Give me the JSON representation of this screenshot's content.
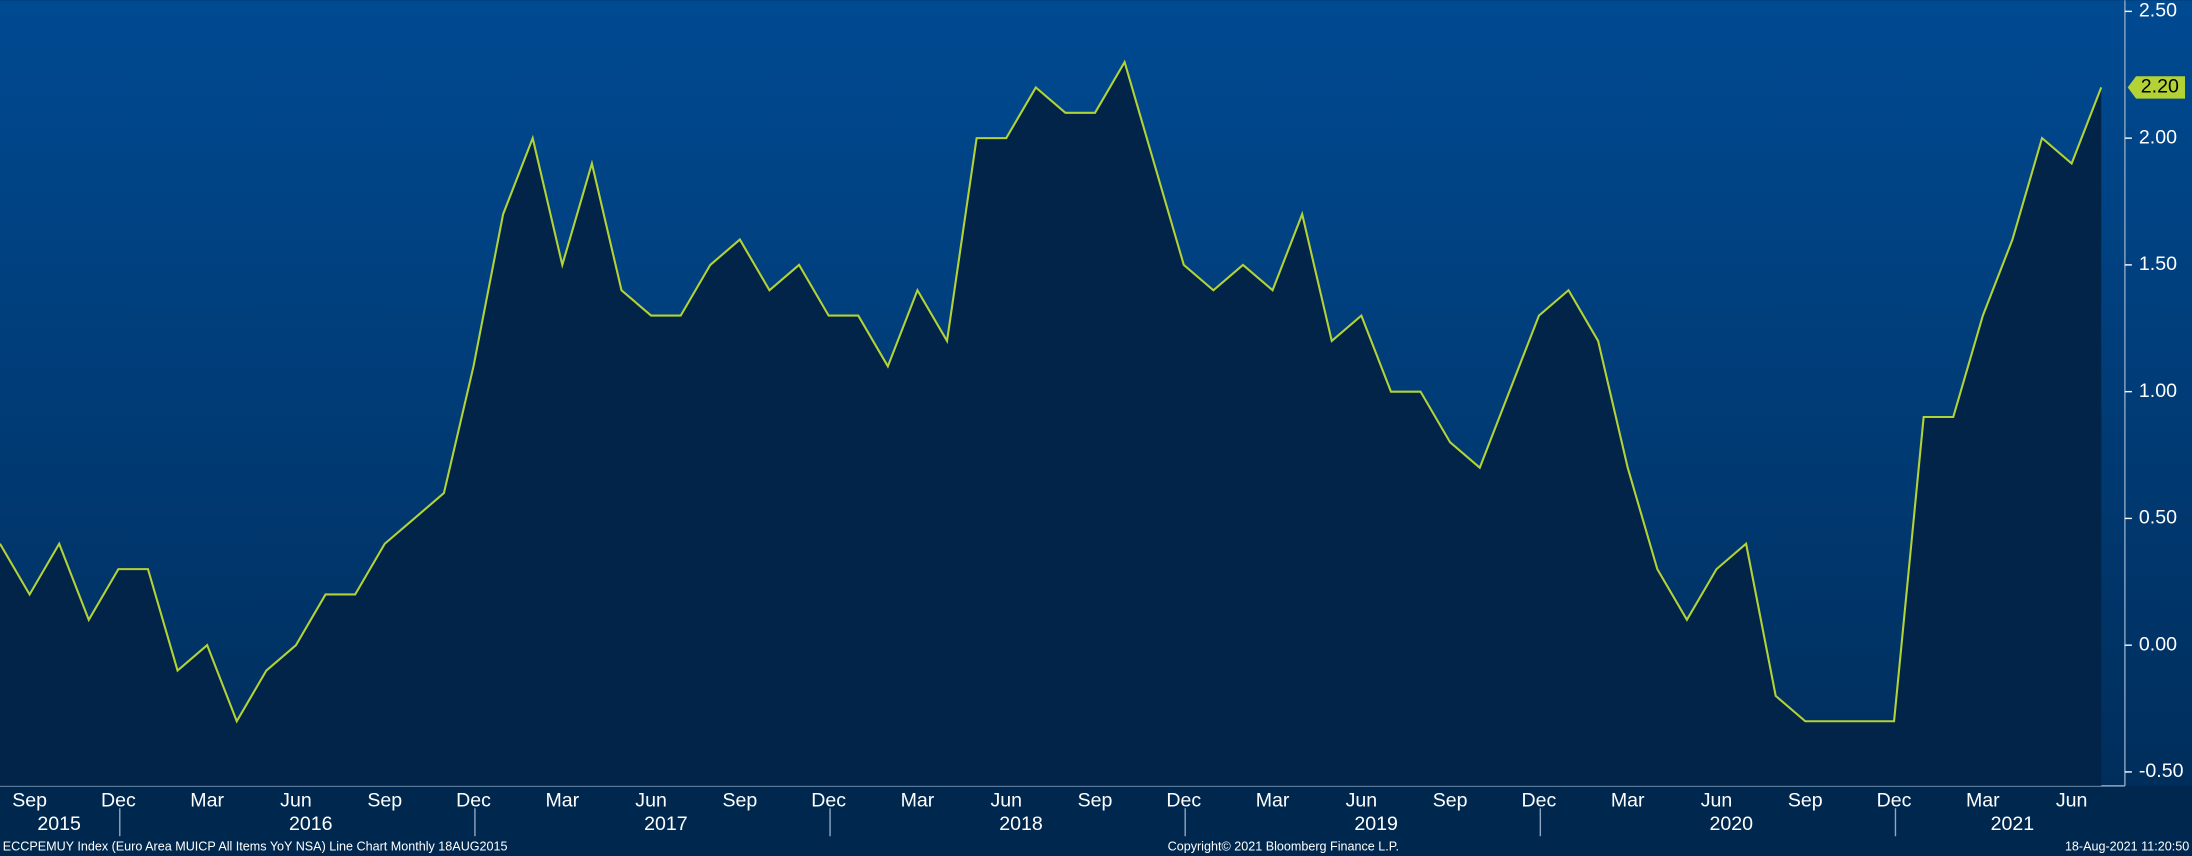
{
  "chart_data": {
    "type": "area-line",
    "categories": [
      null,
      "Sep",
      null,
      null,
      "Dec",
      null,
      null,
      "Mar",
      null,
      null,
      "Jun",
      null,
      null,
      "Sep",
      null,
      null,
      "Dec",
      null,
      null,
      "Mar",
      null,
      null,
      "Jun",
      null,
      null,
      "Sep",
      null,
      null,
      "Dec",
      null,
      null,
      "Mar",
      null,
      null,
      "Jun",
      null,
      null,
      "Sep",
      null,
      null,
      "Dec",
      null,
      null,
      "Mar",
      null,
      null,
      "Jun",
      null,
      null,
      "Sep",
      null,
      null,
      "Dec",
      null,
      null,
      "Mar",
      null,
      null,
      "Jun",
      null,
      null,
      "Sep",
      null,
      null,
      "Dec",
      null,
      null,
      "Mar",
      null,
      null,
      "Jun",
      null
    ],
    "years": [
      "2015",
      "2016",
      "2017",
      "2018",
      "2019",
      "2020",
      "2021"
    ],
    "series": [
      {
        "color": "#b3d236",
        "fill": "#012448",
        "values": [
          0.4,
          0.2,
          0.4,
          0.1,
          0.3,
          0.3,
          -0.1,
          0.0,
          -0.3,
          -0.1,
          0.0,
          0.2,
          0.2,
          0.4,
          0.5,
          0.6,
          1.1,
          1.7,
          2.0,
          1.5,
          1.9,
          1.4,
          1.3,
          1.3,
          1.5,
          1.6,
          1.4,
          1.5,
          1.3,
          1.3,
          1.1,
          1.4,
          1.2,
          2.0,
          2.0,
          2.2,
          2.1,
          2.1,
          2.3,
          1.9,
          1.5,
          1.4,
          1.5,
          1.4,
          1.7,
          1.2,
          1.3,
          1.0,
          1.0,
          0.8,
          0.7,
          1.0,
          1.3,
          1.4,
          1.2,
          0.7,
          0.3,
          0.1,
          0.3,
          0.4,
          -0.2,
          -0.3,
          -0.3,
          -0.3,
          -0.3,
          0.9,
          0.9,
          1.3,
          1.6,
          2.0,
          1.9,
          2.2
        ],
        "value_labels": [
          null,
          null,
          null,
          null,
          null,
          null,
          null,
          null,
          null,
          null,
          null,
          null,
          null,
          null,
          null,
          null,
          null,
          null,
          null,
          null,
          null,
          null,
          null,
          null,
          null,
          null,
          null,
          null,
          null,
          null,
          null,
          null,
          null,
          null,
          null,
          null,
          null,
          null,
          null,
          null,
          null,
          null,
          null,
          null,
          null,
          null,
          null,
          null,
          null,
          null,
          null,
          null,
          null,
          null,
          null,
          null,
          null,
          null,
          null,
          null,
          null,
          null,
          null,
          null,
          null,
          null,
          null,
          null,
          null,
          null,
          null,
          "2.20"
        ]
      }
    ],
    "ylim": [
      -0.555,
      2.544
    ],
    "yticks": [
      {
        "value": -0.5,
        "label": "-0.50"
      },
      {
        "value": 0,
        "label": "0.00"
      },
      {
        "value": 0.5,
        "label": "0.50"
      },
      {
        "value": 1,
        "label": "1.00"
      },
      {
        "value": 1.5,
        "label": "1.50"
      },
      {
        "value": 2,
        "label": "2.00"
      },
      {
        "value": 2.5,
        "label": "2.50"
      }
    ],
    "footer_left": "ECCPEMUY Index (Euro Area MUICP All Items YoY NSA) Line Chart  Monthly 18AUG2015",
    "footer_center": "Copyright© 2021 Bloomberg Finance L.P.",
    "footer_right": "18-Aug-2021 11:20:50"
  }
}
